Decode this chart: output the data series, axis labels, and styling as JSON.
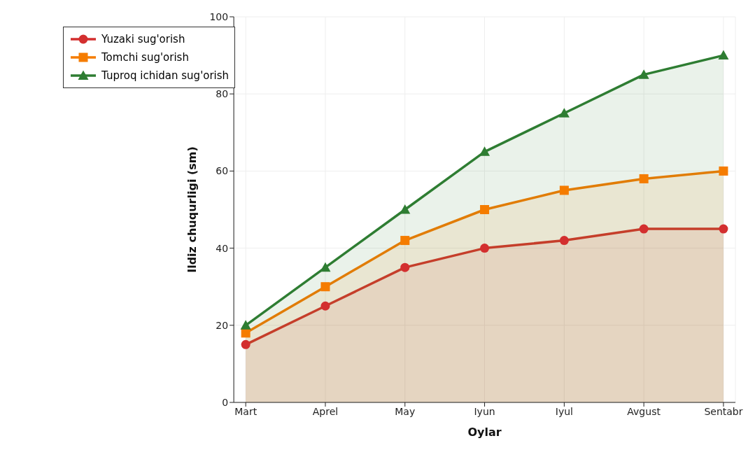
{
  "chart_data": {
    "type": "area",
    "xlabel": "Oylar",
    "ylabel": "Ildiz chuqurligi (sm)",
    "categories": [
      "Mart",
      "Aprel",
      "May",
      "Iyun",
      "Iyul",
      "Avgust",
      "Sentabr"
    ],
    "ylim": [
      0,
      100
    ],
    "yticks": [
      0,
      20,
      40,
      60,
      80,
      100
    ],
    "grid": true,
    "legend": "top left",
    "line_style": "solid",
    "series": [
      {
        "name": "Yuzaki sug'orish",
        "color": "#d32f2f",
        "marker": "circle",
        "values": [
          15,
          25,
          35,
          40,
          42,
          45,
          45
        ]
      },
      {
        "name": "Tomchi sug'orish",
        "color": "#f57c00",
        "marker": "square",
        "values": [
          18,
          30,
          42,
          50,
          55,
          58,
          60
        ]
      },
      {
        "name": "Tuproq ichidan sug'orish",
        "color": "#2e7d32",
        "marker": "triangle",
        "values": [
          20,
          35,
          50,
          65,
          75,
          85,
          90
        ]
      }
    ]
  }
}
